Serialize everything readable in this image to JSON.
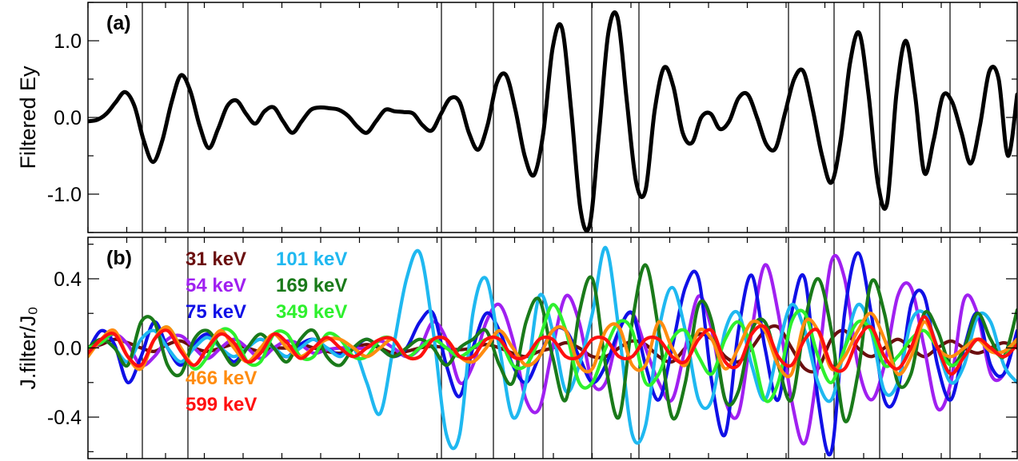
{
  "chart_data": [
    {
      "panel": "(a)",
      "type": "line",
      "ylabel": "Filtered Ey",
      "ylim": [
        -1.5,
        1.5
      ],
      "y_ticks": [
        "1.0",
        "0.0",
        "-1.0"
      ],
      "series_color": "#000000",
      "series": [
        {
          "x": [
            0,
            10,
            20,
            30,
            40,
            50,
            60,
            70,
            80,
            90,
            100,
            110,
            120,
            130,
            140,
            150,
            160,
            170,
            180,
            190,
            200,
            210,
            220,
            230,
            240,
            250,
            260,
            270,
            280,
            290,
            300,
            310,
            320,
            330,
            340,
            350,
            360,
            370,
            380,
            390,
            400,
            410,
            420,
            430,
            440,
            450,
            460,
            470,
            480,
            490,
            500,
            510,
            520,
            530,
            540,
            550,
            560,
            570,
            580,
            590,
            600,
            610,
            620,
            630,
            640,
            650,
            660,
            670,
            680,
            690,
            700,
            710,
            720,
            730,
            740,
            750,
            760,
            770,
            780,
            790,
            800,
            810,
            820,
            830,
            840,
            850,
            860,
            870,
            880,
            890,
            900,
            910,
            920,
            930,
            940,
            950,
            960,
            970,
            980,
            990,
            1000
          ],
          "values": [
            -0.05,
            -0.03,
            0.05,
            0.2,
            0.33,
            0.15,
            -0.3,
            -0.58,
            -0.3,
            0.2,
            0.55,
            0.35,
            -0.1,
            -0.4,
            -0.15,
            0.15,
            0.22,
            0.05,
            -0.08,
            0.08,
            0.13,
            -0.05,
            -0.2,
            -0.05,
            0.1,
            0.13,
            0.12,
            0.1,
            0.02,
            -0.12,
            -0.2,
            -0.05,
            0.1,
            0.08,
            0.07,
            0.05,
            -0.1,
            -0.17,
            0.05,
            0.25,
            0.2,
            -0.2,
            -0.42,
            -0.1,
            0.45,
            0.55,
            0.1,
            -0.5,
            -0.75,
            -0.2,
            0.9,
            1.17,
            0.1,
            -1.2,
            -1.4,
            -0.2,
            1.1,
            1.3,
            0.2,
            -0.85,
            -0.95,
            0.1,
            0.65,
            0.4,
            -0.2,
            -0.33,
            0.0,
            0.05,
            -0.15,
            -0.05,
            0.25,
            0.3,
            0.0,
            -0.35,
            -0.4,
            0.05,
            0.5,
            0.6,
            0.1,
            -0.5,
            -0.85,
            -0.3,
            0.7,
            1.1,
            0.3,
            -0.85,
            -1.12,
            0.3,
            1.0,
            0.3,
            -0.72,
            -0.3,
            0.28,
            0.2,
            -0.2,
            -0.6,
            -0.1,
            0.6,
            0.5,
            -0.5,
            0.3
          ]
        }
      ]
    },
    {
      "panel": "(b)",
      "type": "line",
      "ylabel": "J.filter/J₀",
      "ylim": [
        -0.64,
        0.64
      ],
      "y_ticks": [
        "0.4",
        "0.0",
        "-0.4"
      ],
      "legend": [
        {
          "name": "31 keV",
          "color": "#6b0f0f"
        },
        {
          "name": "101 keV",
          "color": "#1fb8f0"
        },
        {
          "name": "54 keV",
          "color": "#a020f0"
        },
        {
          "name": "169 keV",
          "color": "#1a7a1a"
        },
        {
          "name": "75 keV",
          "color": "#1010e6"
        },
        {
          "name": "349 keV",
          "color": "#2ef02e"
        },
        {
          "name": "466 keV",
          "color": "#ff8c10"
        },
        {
          "name": "599 keV",
          "color": "#ff1010"
        }
      ],
      "series": [
        {
          "name": "31 keV",
          "color": "#6b0f0f",
          "values": [
            0.0,
            0.02,
            0.05,
            0.03,
            0.0,
            -0.02,
            0.02,
            0.04,
            0.0,
            -0.02,
            0.0,
            0.02,
            0.0,
            -0.02,
            0.0,
            0.0,
            0.02,
            0.0,
            -0.02,
            -0.03,
            0.0,
            0.02,
            0.0,
            -0.03,
            -0.02,
            0.0,
            0.01,
            0.0,
            -0.01,
            0.0,
            0.02,
            0.0,
            -0.03,
            -0.05,
            -0.02,
            0.0,
            0.03,
            0.0,
            -0.05,
            -0.05,
            0.0,
            0.04,
            0.02,
            -0.05,
            -0.08,
            0.0,
            0.08,
            0.05,
            -0.05,
            -0.08,
            0.0,
            0.1,
            0.12,
            0.0,
            -0.12,
            -0.12,
            0.05,
            0.1,
            0.0,
            -0.05,
            0.0,
            0.05,
            0.0,
            -0.05,
            0.0,
            0.04,
            0.0,
            -0.03,
            0.0,
            0.03,
            0.0
          ]
        },
        {
          "name": "54 keV",
          "color": "#a020f0",
          "values": [
            -0.02,
            0.03,
            0.08,
            0.02,
            -0.1,
            -0.05,
            0.05,
            0.07,
            0.0,
            -0.06,
            0.0,
            0.05,
            0.0,
            -0.06,
            0.0,
            0.04,
            0.02,
            -0.03,
            -0.01,
            0.0,
            0.0,
            0.0,
            0.04,
            0.0,
            -0.05,
            0.0,
            0.15,
            0.05,
            -0.2,
            -0.1,
            0.15,
            0.25,
            0.05,
            -0.3,
            -0.35,
            0.0,
            0.3,
            0.15,
            -0.2,
            -0.2,
            0.1,
            0.2,
            0.0,
            -0.2,
            -0.3,
            0.0,
            0.3,
            0.1,
            -0.3,
            -0.38,
            0.1,
            0.48,
            0.2,
            -0.3,
            -0.55,
            -0.1,
            0.5,
            0.4,
            -0.1,
            -0.3,
            -0.1,
            0.3,
            0.35,
            0.0,
            -0.35,
            -0.2,
            0.28,
            0.2,
            -0.15,
            -0.15,
            0.1
          ]
        },
        {
          "name": "75 keV",
          "color": "#1010e6",
          "values": [
            -0.02,
            0.1,
            0.02,
            -0.2,
            -0.05,
            0.15,
            0.0,
            -0.1,
            0.02,
            0.08,
            0.0,
            -0.08,
            0.0,
            0.05,
            0.0,
            -0.05,
            0.02,
            0.05,
            0.0,
            -0.04,
            0.0,
            0.05,
            0.0,
            -0.05,
            0.0,
            0.15,
            0.2,
            -0.1,
            -0.28,
            0.0,
            0.2,
            0.1,
            -0.1,
            -0.2,
            -0.05,
            0.1,
            0.1,
            -0.05,
            -0.2,
            -0.1,
            0.1,
            0.2,
            -0.1,
            -0.3,
            0.0,
            0.35,
            0.4,
            -0.2,
            -0.5,
            0.1,
            0.42,
            0.0,
            -0.3,
            0.2,
            0.4,
            -0.3,
            -0.6,
            0.2,
            0.55,
            0.2,
            -0.3,
            -0.25,
            0.25,
            0.3,
            -0.1,
            -0.3,
            0.0,
            0.2,
            -0.1,
            -0.15,
            0.1
          ]
        },
        {
          "name": "101 keV",
          "color": "#1fb8f0",
          "values": [
            -0.02,
            0.05,
            0.0,
            -0.08,
            0.05,
            0.1,
            0.0,
            -0.08,
            0.0,
            0.06,
            0.0,
            -0.05,
            0.0,
            0.05,
            0.0,
            -0.05,
            0.0,
            0.05,
            0.0,
            -0.05,
            0.0,
            -0.2,
            -0.38,
            0.0,
            0.4,
            0.55,
            0.1,
            -0.5,
            -0.5,
            0.2,
            0.4,
            0.0,
            -0.4,
            -0.2,
            0.3,
            0.1,
            -0.25,
            -0.1,
            0.2,
            0.58,
            0.1,
            -0.5,
            -0.45,
            0.1,
            0.35,
            0.1,
            -0.3,
            -0.3,
            0.1,
            0.2,
            -0.1,
            -0.3,
            0.0,
            0.25,
            0.1,
            -0.2,
            -0.3,
            0.0,
            0.25,
            0.1,
            -0.25,
            -0.2,
            0.15,
            0.2,
            0.0,
            -0.2,
            -0.1,
            0.18,
            0.15,
            -0.1,
            -0.2
          ]
        },
        {
          "name": "169 keV",
          "color": "#1a7a1a",
          "values": [
            0.0,
            0.05,
            0.0,
            -0.1,
            0.15,
            0.15,
            -0.1,
            -0.15,
            0.05,
            0.1,
            0.0,
            -0.1,
            0.0,
            0.08,
            0.0,
            -0.08,
            0.05,
            0.1,
            -0.05,
            -0.1,
            0.0,
            0.05,
            0.0,
            -0.05,
            0.0,
            0.05,
            0.0,
            -0.1,
            0.0,
            0.05,
            0.1,
            -0.1,
            -0.2,
            0.15,
            0.28,
            -0.05,
            -0.3,
            0.2,
            0.4,
            -0.1,
            -0.4,
            0.15,
            0.48,
            0.1,
            -0.4,
            -0.2,
            0.25,
            0.15,
            -0.3,
            -0.25,
            0.1,
            0.15,
            -0.1,
            -0.3,
            0.15,
            0.4,
            0.1,
            -0.42,
            -0.15,
            0.38,
            0.2,
            -0.2,
            -0.15,
            0.2,
            0.1,
            -0.1,
            0.0,
            0.2,
            0.05,
            -0.05,
            0.22
          ]
        },
        {
          "name": "349 keV",
          "color": "#2ef02e",
          "values": [
            0.0,
            0.03,
            0.08,
            -0.05,
            -0.12,
            0.05,
            0.12,
            0.0,
            -0.12,
            -0.05,
            0.1,
            0.08,
            -0.08,
            -0.08,
            0.08,
            0.08,
            -0.05,
            -0.05,
            0.08,
            0.05,
            -0.05,
            -0.05,
            0.05,
            0.05,
            -0.05,
            0.0,
            0.05,
            0.0,
            -0.05,
            0.0,
            0.05,
            0.05,
            -0.1,
            -0.1,
            0.05,
            0.25,
            0.1,
            -0.2,
            -0.2,
            0.0,
            0.15,
            0.1,
            -0.2,
            -0.15,
            0.05,
            0.1,
            -0.05,
            -0.15,
            0.05,
            0.15,
            0.0,
            -0.3,
            -0.2,
            0.15,
            0.2,
            -0.05,
            -0.2,
            0.0,
            0.15,
            0.1,
            -0.1,
            -0.05,
            0.05,
            0.1,
            0.0,
            -0.1,
            -0.05,
            0.05,
            0.0,
            -0.05,
            0.05
          ]
        },
        {
          "name": "466 keV",
          "color": "#ff8c10",
          "values": [
            -0.05,
            0.05,
            0.1,
            -0.05,
            -0.12,
            0.05,
            0.12,
            0.0,
            -0.1,
            0.0,
            0.1,
            0.0,
            -0.08,
            0.0,
            0.08,
            0.0,
            -0.05,
            0.0,
            0.05,
            0.05,
            0.0,
            -0.05,
            0.0,
            0.05,
            -0.05,
            -0.05,
            0.05,
            0.05,
            -0.05,
            -0.08,
            0.0,
            0.1,
            0.0,
            -0.1,
            -0.05,
            0.1,
            0.1,
            -0.1,
            -0.12,
            0.1,
            0.12,
            -0.1,
            -0.1,
            0.15,
            0.0,
            -0.1,
            0.1,
            0.05,
            -0.12,
            0.0,
            0.15,
            0.1,
            -0.1,
            -0.15,
            0.15,
            0.1,
            -0.12,
            -0.05,
            0.1,
            0.2,
            0.05,
            -0.15,
            -0.05,
            0.15,
            0.0,
            -0.05,
            0.0,
            0.05,
            -0.02,
            -0.02,
            0.05
          ]
        },
        {
          "name": "599 keV",
          "color": "#ff1010",
          "values": [
            -0.03,
            0.05,
            0.08,
            -0.05,
            -0.1,
            0.05,
            0.1,
            -0.02,
            -0.1,
            0.0,
            0.08,
            0.03,
            -0.08,
            -0.03,
            0.08,
            0.03,
            -0.06,
            0.0,
            0.06,
            0.0,
            -0.05,
            0.0,
            0.05,
            0.05,
            -0.05,
            -0.05,
            0.05,
            0.05,
            -0.05,
            -0.05,
            0.05,
            0.05,
            -0.05,
            -0.05,
            0.05,
            0.05,
            -0.05,
            -0.05,
            0.05,
            0.05,
            -0.05,
            -0.05,
            0.05,
            0.05,
            -0.05,
            -0.08,
            0.05,
            0.1,
            -0.08,
            -0.1,
            0.08,
            0.12,
            -0.05,
            -0.1,
            0.05,
            0.1,
            -0.1,
            -0.12,
            0.05,
            0.12,
            -0.05,
            -0.12,
            0.0,
            0.18,
            0.0,
            -0.15,
            -0.05,
            0.05,
            0.0,
            -0.05,
            0.02
          ]
        }
      ]
    }
  ]
}
